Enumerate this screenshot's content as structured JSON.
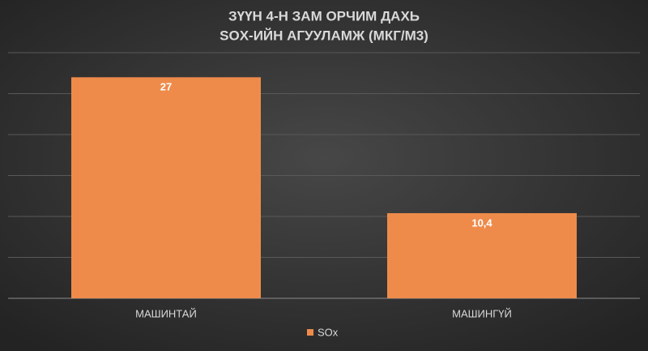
{
  "chart_data": {
    "type": "bar",
    "title": [
      "ЗҮҮН 4-Н ЗАМ ОРЧИМ ДАХЬ",
      "SOX-ИЙН АГУУЛАМЖ (МКГ/М3)"
    ],
    "categories": [
      "МАШИНТАЙ",
      "МАШИНГҮЙ"
    ],
    "series": [
      {
        "name": "SOx",
        "color": "#ee8b4b",
        "values": [
          27,
          10.4
        ],
        "value_labels": [
          "27",
          "10,4"
        ]
      }
    ],
    "ylim": [
      0,
      30
    ],
    "yticks": [
      0,
      5,
      10,
      15,
      20,
      25,
      30
    ],
    "grid": true,
    "legend": "bottom"
  }
}
